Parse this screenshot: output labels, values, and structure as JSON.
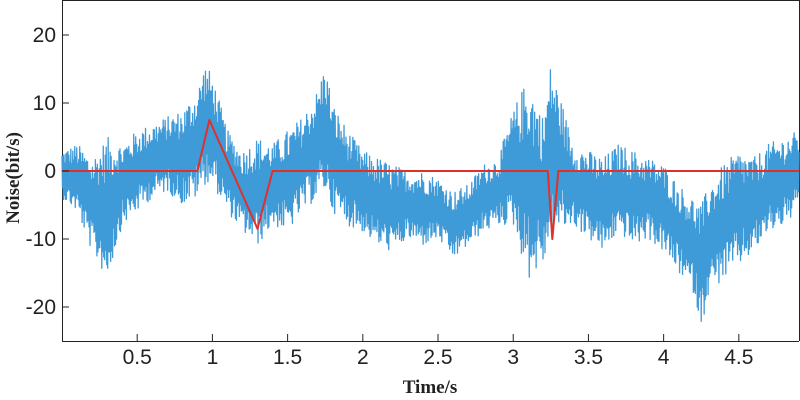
{
  "chart_data": {
    "type": "line",
    "xlabel": "Time/s",
    "ylabel": "Noise(bit/s)",
    "xlim": [
      0,
      4.9
    ],
    "ylim": [
      -25,
      25
    ],
    "x_ticks": [
      0.5,
      1,
      1.5,
      2,
      2.5,
      3,
      3.5,
      4,
      4.5
    ],
    "x_tick_labels": [
      "0.5",
      "1",
      "1.5",
      "2",
      "2.5",
      "3",
      "3.5",
      "4",
      "4.5"
    ],
    "y_ticks": [
      20,
      10,
      0,
      -10,
      -20
    ],
    "y_tick_labels": [
      "20",
      "10",
      "0",
      "-10",
      "-20"
    ],
    "grid": false,
    "series": [
      {
        "color": "#3f9ad8",
        "style": "dense-noise",
        "envelope": {
          "x": [
            0.0,
            0.1,
            0.2,
            0.3,
            0.4,
            0.5,
            0.6,
            0.7,
            0.8,
            0.9,
            0.95,
            1.0,
            1.05,
            1.1,
            1.2,
            1.3,
            1.4,
            1.5,
            1.6,
            1.7,
            1.75,
            1.8,
            1.9,
            2.0,
            2.1,
            2.2,
            2.3,
            2.4,
            2.5,
            2.6,
            2.7,
            2.8,
            2.9,
            3.0,
            3.1,
            3.2,
            3.25,
            3.3,
            3.4,
            3.5,
            3.6,
            3.7,
            3.8,
            3.9,
            4.0,
            4.1,
            4.2,
            4.25,
            4.3,
            4.4,
            4.5,
            4.6,
            4.7,
            4.8,
            4.9
          ],
          "upper": [
            3,
            4,
            2,
            5,
            4,
            6,
            7,
            8,
            9,
            12,
            16,
            14,
            10,
            6,
            3,
            5,
            4,
            6,
            8,
            12,
            16,
            10,
            6,
            3,
            2,
            1,
            0,
            0,
            -1,
            -3,
            -2,
            1,
            2,
            9,
            14,
            8,
            16,
            12,
            4,
            3,
            2,
            4,
            3,
            2,
            1,
            -2,
            -4,
            -5,
            -2,
            1,
            3,
            2,
            4,
            5,
            6
          ],
          "lower": [
            -4,
            -6,
            -12,
            -16,
            -8,
            -6,
            -4,
            -3,
            -5,
            -4,
            -2,
            -2,
            -4,
            -6,
            -9,
            -11,
            -8,
            -9,
            -6,
            -4,
            -3,
            -6,
            -8,
            -9,
            -11,
            -12,
            -10,
            -11,
            -10,
            -13,
            -11,
            -9,
            -8,
            -8,
            -16,
            -14,
            -10,
            -9,
            -8,
            -10,
            -12,
            -9,
            -11,
            -10,
            -12,
            -15,
            -18,
            -23,
            -18,
            -16,
            -14,
            -12,
            -9,
            -8,
            -6
          ]
        }
      },
      {
        "color": "#e0302a",
        "x": [
          0.0,
          0.9,
          0.98,
          1.3,
          1.4,
          3.23,
          3.26,
          3.3,
          4.9
        ],
        "y": [
          0,
          0,
          7.5,
          -8.5,
          0,
          0,
          -10,
          0,
          0
        ]
      }
    ]
  }
}
